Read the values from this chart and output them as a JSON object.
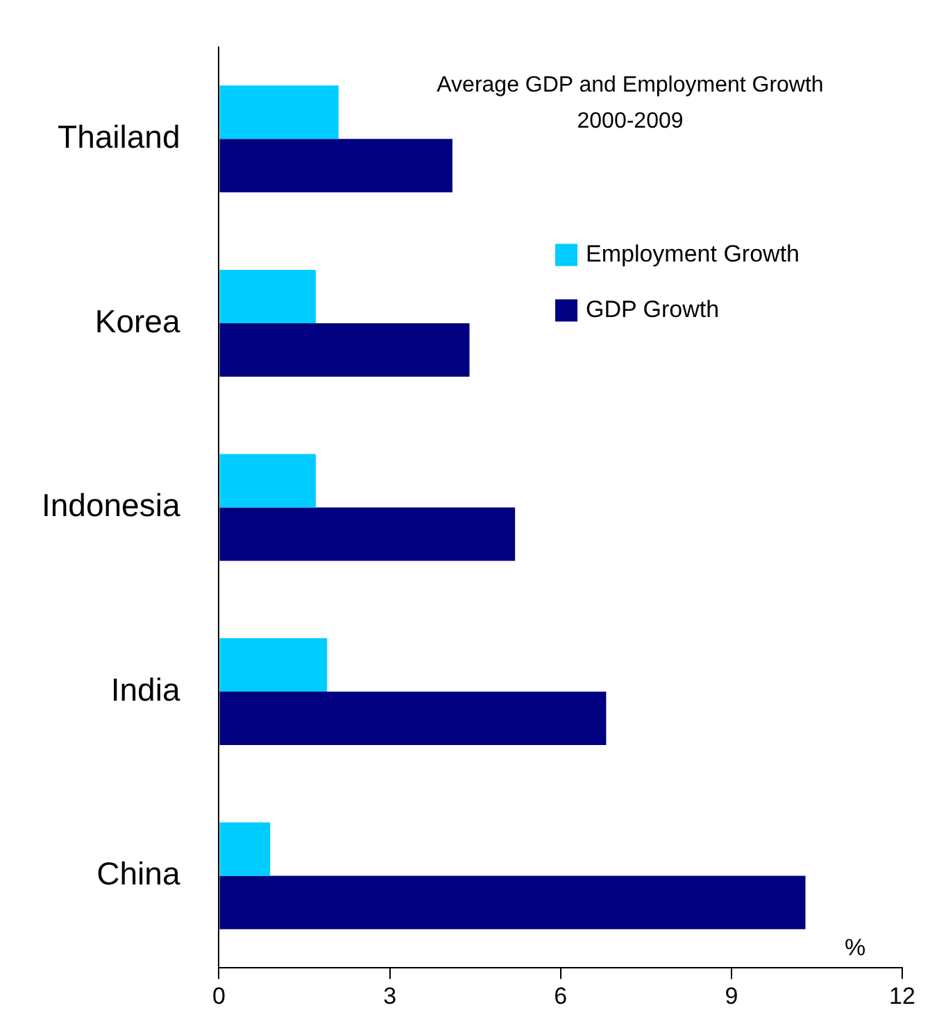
{
  "chart_data": {
    "type": "bar",
    "orientation": "horizontal",
    "title": "Average GDP and Employment Growth",
    "subtitle": "2000-2009",
    "xlabel": "%",
    "categories": [
      "Thailand",
      "Korea",
      "Indonesia",
      "India",
      "China"
    ],
    "series": [
      {
        "name": "Employment Growth",
        "color": "#00ccff",
        "values": [
          2.1,
          1.7,
          1.7,
          1.9,
          0.9
        ]
      },
      {
        "name": "GDP Growth",
        "color": "#000080",
        "values": [
          4.1,
          4.4,
          5.2,
          6.8,
          10.3
        ]
      }
    ],
    "xlim": [
      0,
      12
    ],
    "xticks": [
      0,
      3,
      6,
      9,
      12
    ],
    "grid": false,
    "legend": "top right"
  }
}
